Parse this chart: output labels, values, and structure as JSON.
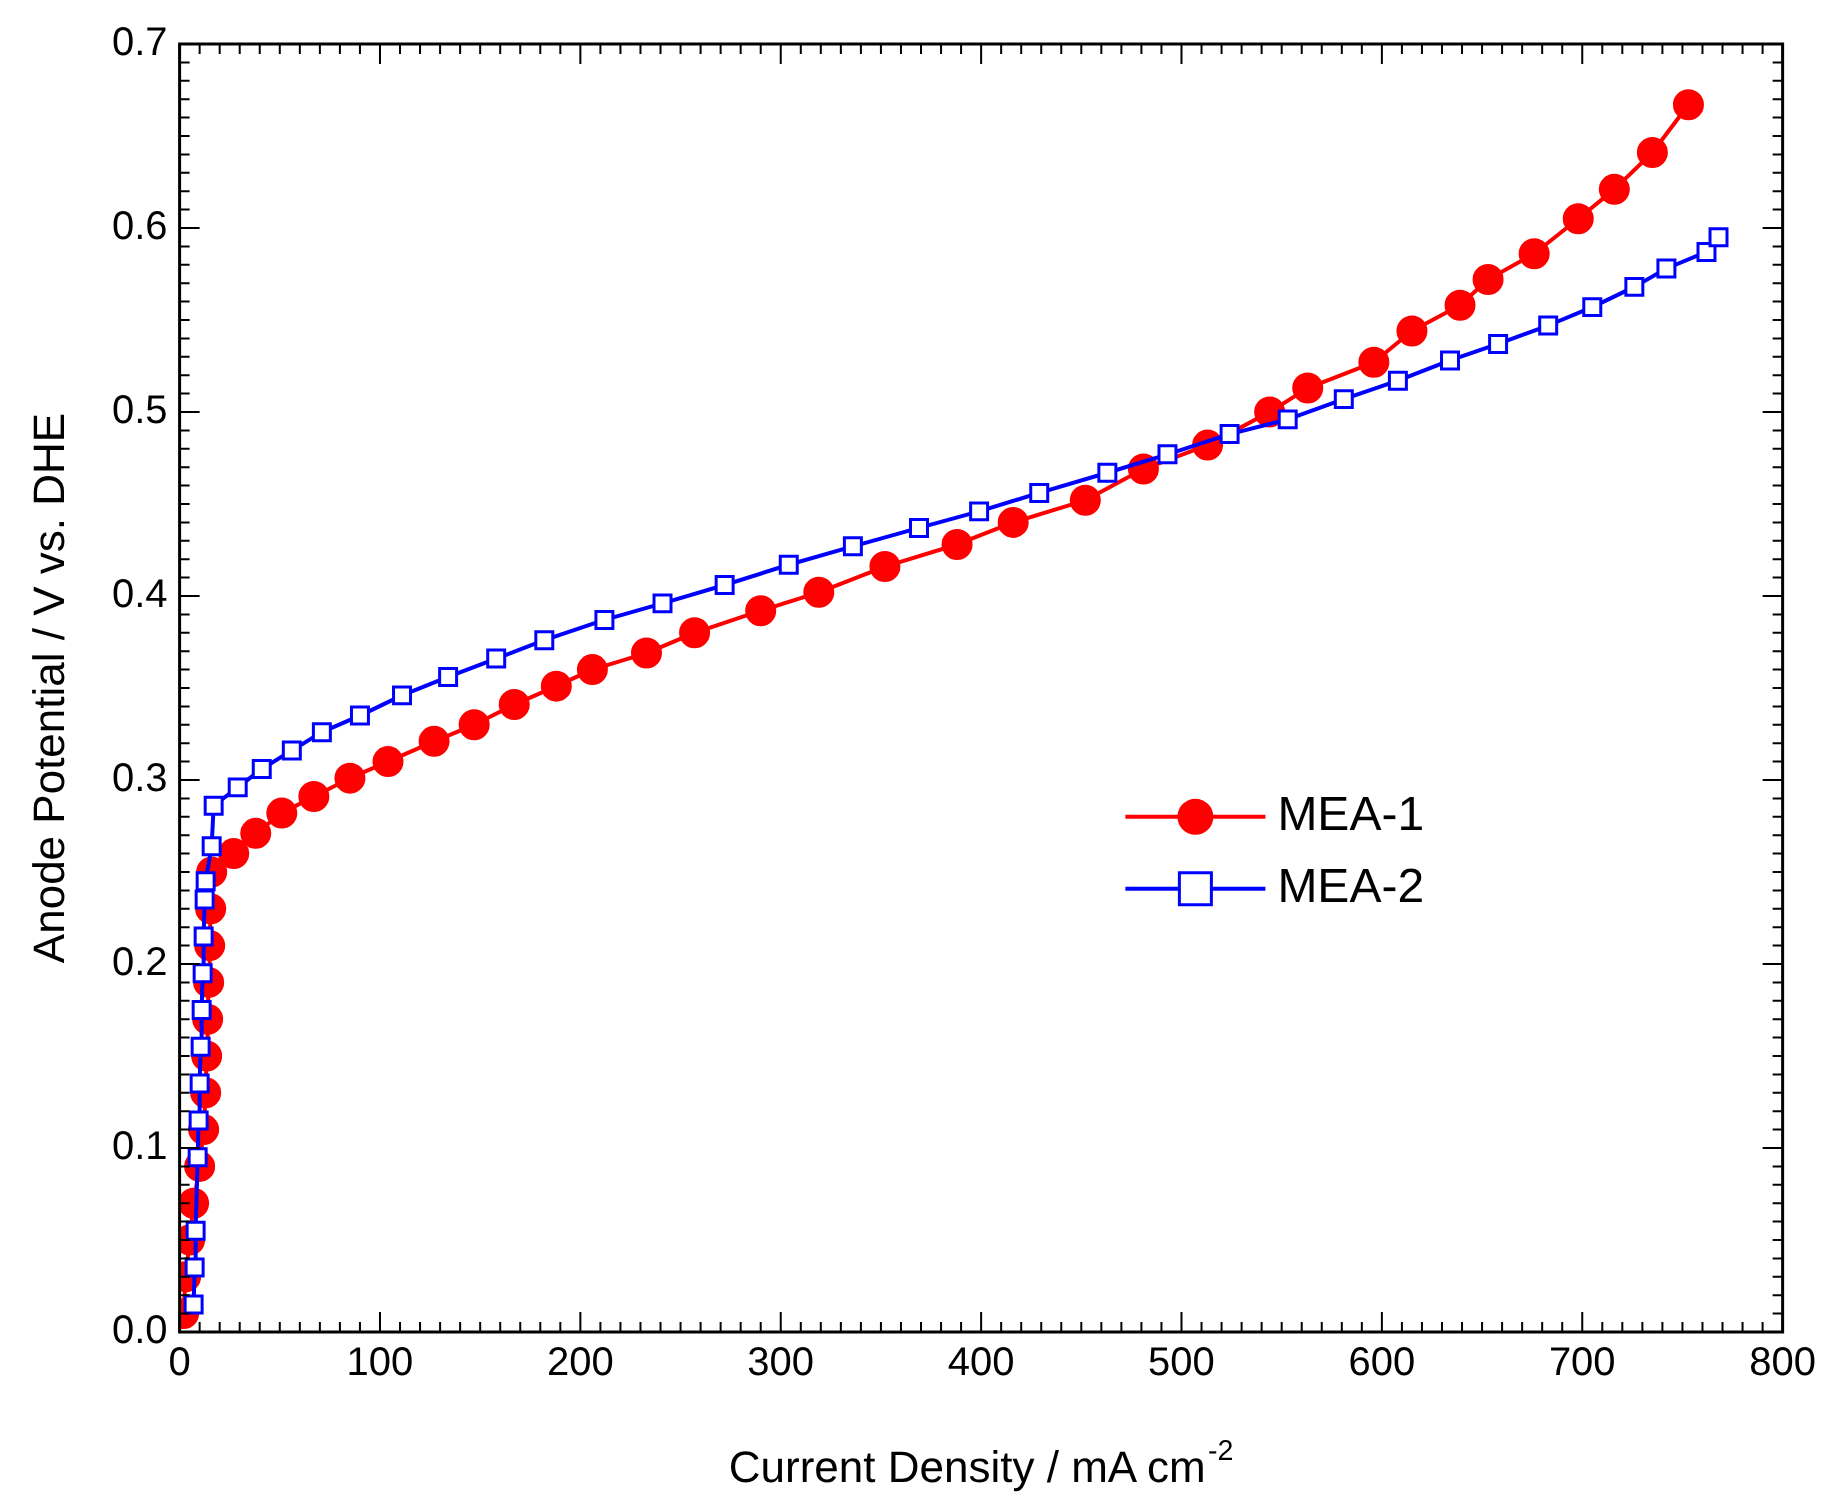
{
  "chart_data": {
    "type": "line",
    "xlabel": "Current Density / mA cm$^{-2}$",
    "ylabel": "Anode Potential / V vs. DHE",
    "xlim": [
      0,
      800
    ],
    "xticks": [
      0,
      100,
      200,
      300,
      400,
      500,
      600,
      700,
      800
    ],
    "ylim": [
      0,
      0.7
    ],
    "yticks": [
      {
        "value": 0,
        "label": "0.0"
      },
      0.1,
      0.2,
      0.3,
      0.4,
      0.5,
      0.6,
      0.7
    ],
    "grid": false,
    "legend": "right",
    "line_style": "solid",
    "series": [
      {
        "name": "MEA-1",
        "color": "#ff0000",
        "marker": "circle",
        "x": [
          2,
          3,
          5,
          7,
          10,
          12,
          13,
          13.5,
          14,
          14.5,
          15,
          15.5,
          16,
          27,
          38,
          51,
          67,
          85,
          104,
          127,
          147,
          167,
          188,
          206,
          233,
          257,
          290,
          319,
          352,
          388,
          416,
          452,
          481,
          513,
          544,
          563,
          596,
          615,
          639,
          653,
          676,
          698,
          716,
          735,
          753
        ],
        "values": [
          0.01,
          0.03,
          0.05,
          0.07,
          0.09,
          0.11,
          0.13,
          0.15,
          0.17,
          0.19,
          0.21,
          0.23,
          0.25,
          0.26,
          0.271,
          0.282,
          0.291,
          0.301,
          0.31,
          0.321,
          0.33,
          0.341,
          0.351,
          0.36,
          0.369,
          0.38,
          0.392,
          0.402,
          0.416,
          0.428,
          0.44,
          0.452,
          0.469,
          0.482,
          0.5,
          0.513,
          0.527,
          0.544,
          0.558,
          0.572,
          0.586,
          0.605,
          0.621,
          0.641,
          0.667
        ]
      },
      {
        "name": "MEA-2",
        "color": "#0000ff",
        "marker": "square",
        "x": [
          7,
          7.5,
          8,
          9,
          9.5,
          10,
          10.5,
          11,
          11.5,
          12,
          12.5,
          13,
          16,
          17,
          29,
          41,
          56,
          71,
          90,
          111,
          134,
          158,
          182,
          212,
          241,
          272,
          304,
          336,
          369,
          399,
          429,
          463,
          493,
          524,
          553,
          581,
          608,
          634,
          658,
          683,
          705,
          726,
          742,
          762,
          768
        ],
        "values": [
          0.015,
          0.035,
          0.055,
          0.095,
          0.115,
          0.135,
          0.155,
          0.175,
          0.195,
          0.215,
          0.235,
          0.245,
          0.264,
          0.286,
          0.296,
          0.306,
          0.316,
          0.326,
          0.335,
          0.346,
          0.356,
          0.366,
          0.376,
          0.387,
          0.396,
          0.406,
          0.417,
          0.427,
          0.437,
          0.446,
          0.456,
          0.467,
          0.477,
          0.488,
          0.496,
          0.507,
          0.517,
          0.528,
          0.537,
          0.547,
          0.557,
          0.568,
          0.578,
          0.587,
          0.595
        ]
      }
    ]
  }
}
